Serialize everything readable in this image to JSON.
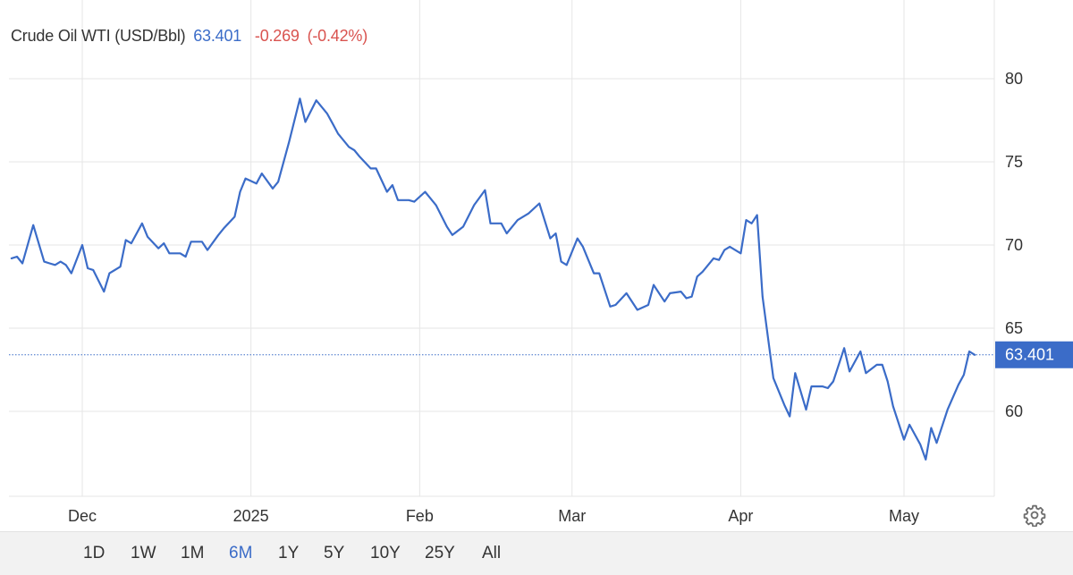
{
  "header": {
    "title": "Crude Oil WTI (USD/Bbl)",
    "price": "63.401",
    "change": "-0.269",
    "change_pct": "(-0.42%)"
  },
  "colors": {
    "line": "#3b6cc8",
    "negative": "#d9534f",
    "grid": "#e6e6e6",
    "label_bg": "#3b6cc8"
  },
  "toolbar": {
    "settings_icon": "gear-icon",
    "ranges": [
      {
        "label": "1D",
        "active": false
      },
      {
        "label": "1W",
        "active": false
      },
      {
        "label": "1M",
        "active": false
      },
      {
        "label": "6M",
        "active": true
      },
      {
        "label": "1Y",
        "active": false
      },
      {
        "label": "5Y",
        "active": false
      },
      {
        "label": "10Y",
        "active": false
      },
      {
        "label": "25Y",
        "active": false
      },
      {
        "label": "All",
        "active": false
      }
    ]
  },
  "chart_data": {
    "type": "line",
    "title": "Crude Oil WTI (USD/Bbl)",
    "ylim": [
      55,
      82
    ],
    "yticks": [
      60,
      65,
      70,
      75,
      80
    ],
    "xlim": [
      "2024-11-18",
      "2025-05-30"
    ],
    "xticks": [
      {
        "date": "2024-12-01",
        "label": "Dec"
      },
      {
        "date": "2025-01-01",
        "label": "2025"
      },
      {
        "date": "2025-02-01",
        "label": "Feb"
      },
      {
        "date": "2025-03-01",
        "label": "Mar"
      },
      {
        "date": "2025-04-01",
        "label": "Apr"
      },
      {
        "date": "2025-05-01",
        "label": "May"
      }
    ],
    "grid": true,
    "y_axis_position": "right",
    "last_value": 63.401,
    "last_value_label": "63.401",
    "series": [
      {
        "values": [
          [
            "2024-11-18",
            69.2
          ],
          [
            "2024-11-19",
            69.3
          ],
          [
            "2024-11-20",
            68.9
          ],
          [
            "2024-11-22",
            71.2
          ],
          [
            "2024-11-24",
            69.0
          ],
          [
            "2024-11-25",
            68.9
          ],
          [
            "2024-11-26",
            68.8
          ],
          [
            "2024-11-27",
            69.0
          ],
          [
            "2024-11-28",
            68.8
          ],
          [
            "2024-11-29",
            68.3
          ],
          [
            "2024-12-01",
            70.0
          ],
          [
            "2024-12-02",
            68.6
          ],
          [
            "2024-12-03",
            68.5
          ],
          [
            "2024-12-05",
            67.2
          ],
          [
            "2024-12-06",
            68.3
          ],
          [
            "2024-12-08",
            68.7
          ],
          [
            "2024-12-09",
            70.3
          ],
          [
            "2024-12-10",
            70.1
          ],
          [
            "2024-12-12",
            71.3
          ],
          [
            "2024-12-13",
            70.5
          ],
          [
            "2024-12-15",
            69.8
          ],
          [
            "2024-12-16",
            70.1
          ],
          [
            "2024-12-17",
            69.5
          ],
          [
            "2024-12-19",
            69.5
          ],
          [
            "2024-12-20",
            69.3
          ],
          [
            "2024-12-21",
            70.2
          ],
          [
            "2024-12-23",
            70.2
          ],
          [
            "2024-12-24",
            69.7
          ],
          [
            "2024-12-26",
            70.6
          ],
          [
            "2024-12-27",
            71.0
          ],
          [
            "2024-12-29",
            71.7
          ],
          [
            "2024-12-30",
            73.2
          ],
          [
            "2024-12-31",
            74.0
          ],
          [
            "2025-01-02",
            73.7
          ],
          [
            "2025-01-03",
            74.3
          ],
          [
            "2025-01-05",
            73.4
          ],
          [
            "2025-01-06",
            73.8
          ],
          [
            "2025-01-08",
            76.2
          ],
          [
            "2025-01-10",
            78.8
          ],
          [
            "2025-01-11",
            77.4
          ],
          [
            "2025-01-13",
            78.7
          ],
          [
            "2025-01-15",
            77.9
          ],
          [
            "2025-01-16",
            77.3
          ],
          [
            "2025-01-17",
            76.7
          ],
          [
            "2025-01-19",
            75.9
          ],
          [
            "2025-01-20",
            75.7
          ],
          [
            "2025-01-21",
            75.3
          ],
          [
            "2025-01-23",
            74.6
          ],
          [
            "2025-01-24",
            74.6
          ],
          [
            "2025-01-26",
            73.2
          ],
          [
            "2025-01-27",
            73.6
          ],
          [
            "2025-01-28",
            72.7
          ],
          [
            "2025-01-30",
            72.7
          ],
          [
            "2025-01-31",
            72.6
          ],
          [
            "2025-02-02",
            73.2
          ],
          [
            "2025-02-03",
            72.8
          ],
          [
            "2025-02-04",
            72.4
          ],
          [
            "2025-02-06",
            71.1
          ],
          [
            "2025-02-07",
            70.6
          ],
          [
            "2025-02-09",
            71.1
          ],
          [
            "2025-02-11",
            72.4
          ],
          [
            "2025-02-13",
            73.3
          ],
          [
            "2025-02-14",
            71.3
          ],
          [
            "2025-02-16",
            71.3
          ],
          [
            "2025-02-17",
            70.7
          ],
          [
            "2025-02-19",
            71.5
          ],
          [
            "2025-02-21",
            71.9
          ],
          [
            "2025-02-23",
            72.5
          ],
          [
            "2025-02-25",
            70.4
          ],
          [
            "2025-02-26",
            70.7
          ],
          [
            "2025-02-27",
            69.0
          ],
          [
            "2025-02-28",
            68.8
          ],
          [
            "2025-03-02",
            70.4
          ],
          [
            "2025-03-03",
            69.9
          ],
          [
            "2025-03-05",
            68.3
          ],
          [
            "2025-03-06",
            68.3
          ],
          [
            "2025-03-08",
            66.3
          ],
          [
            "2025-03-09",
            66.4
          ],
          [
            "2025-03-11",
            67.1
          ],
          [
            "2025-03-13",
            66.1
          ],
          [
            "2025-03-15",
            66.4
          ],
          [
            "2025-03-16",
            67.6
          ],
          [
            "2025-03-18",
            66.6
          ],
          [
            "2025-03-19",
            67.1
          ],
          [
            "2025-03-21",
            67.2
          ],
          [
            "2025-03-22",
            66.8
          ],
          [
            "2025-03-23",
            66.9
          ],
          [
            "2025-03-24",
            68.1
          ],
          [
            "2025-03-25",
            68.4
          ],
          [
            "2025-03-27",
            69.2
          ],
          [
            "2025-03-28",
            69.1
          ],
          [
            "2025-03-29",
            69.7
          ],
          [
            "2025-03-30",
            69.9
          ],
          [
            "2025-04-01",
            69.5
          ],
          [
            "2025-04-02",
            71.5
          ],
          [
            "2025-04-03",
            71.3
          ],
          [
            "2025-04-04",
            71.8
          ],
          [
            "2025-04-05",
            66.9
          ],
          [
            "2025-04-07",
            62.0
          ],
          [
            "2025-04-09",
            60.4
          ],
          [
            "2025-04-10",
            59.7
          ],
          [
            "2025-04-11",
            62.3
          ],
          [
            "2025-04-13",
            60.1
          ],
          [
            "2025-04-14",
            61.5
          ],
          [
            "2025-04-16",
            61.5
          ],
          [
            "2025-04-17",
            61.4
          ],
          [
            "2025-04-18",
            61.8
          ],
          [
            "2025-04-20",
            63.8
          ],
          [
            "2025-04-21",
            62.4
          ],
          [
            "2025-04-23",
            63.6
          ],
          [
            "2025-04-24",
            62.3
          ],
          [
            "2025-04-26",
            62.8
          ],
          [
            "2025-04-27",
            62.8
          ],
          [
            "2025-04-28",
            61.8
          ],
          [
            "2025-04-29",
            60.3
          ],
          [
            "2025-05-01",
            58.3
          ],
          [
            "2025-05-02",
            59.2
          ],
          [
            "2025-05-04",
            58.0
          ],
          [
            "2025-05-05",
            57.1
          ],
          [
            "2025-05-06",
            59.0
          ],
          [
            "2025-05-07",
            58.1
          ],
          [
            "2025-05-09",
            60.1
          ],
          [
            "2025-05-11",
            61.6
          ],
          [
            "2025-05-12",
            62.2
          ],
          [
            "2025-05-13",
            63.6
          ],
          [
            "2025-05-14",
            63.4
          ]
        ]
      }
    ]
  }
}
